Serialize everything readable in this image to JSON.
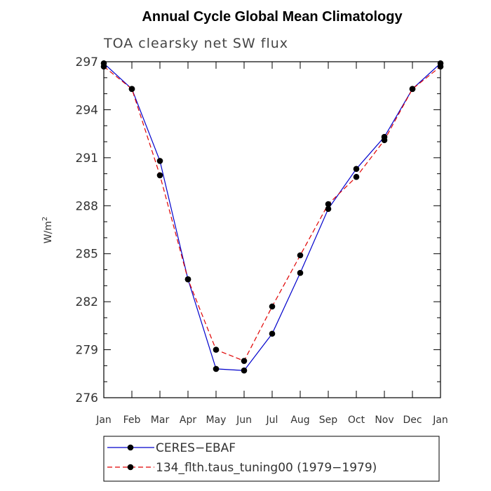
{
  "chart_data": {
    "type": "line",
    "title": "Annual Cycle Global Mean Climatology",
    "subtitle": "TOA clearsky net SW flux",
    "ylabel_base": "W/m",
    "ylabel_sup": "2",
    "ylim": [
      276,
      297
    ],
    "yticks": [
      "276",
      "279",
      "282",
      "285",
      "288",
      "291",
      "294",
      "297"
    ],
    "categories": [
      "Jan",
      "Feb",
      "Mar",
      "Apr",
      "May",
      "Jun",
      "Jul",
      "Aug",
      "Sep",
      "Oct",
      "Nov",
      "Dec",
      "Jan"
    ],
    "grid": false,
    "legend_position": "bottom",
    "series": [
      {
        "name": "CERES−EBAF",
        "color": "#0000cc",
        "dash": "solid",
        "values": [
          296.9,
          295.3,
          290.8,
          283.4,
          277.8,
          277.7,
          280.0,
          283.8,
          287.8,
          290.3,
          292.3,
          295.3,
          296.9
        ]
      },
      {
        "name": "134_flth.taus_tuning00 (1979−1979)",
        "color": "#e00000",
        "dash": "dashed",
        "values": [
          296.7,
          295.3,
          289.9,
          283.4,
          279.0,
          278.3,
          281.7,
          284.9,
          288.1,
          289.8,
          292.1,
          295.3,
          296.7
        ]
      }
    ]
  }
}
